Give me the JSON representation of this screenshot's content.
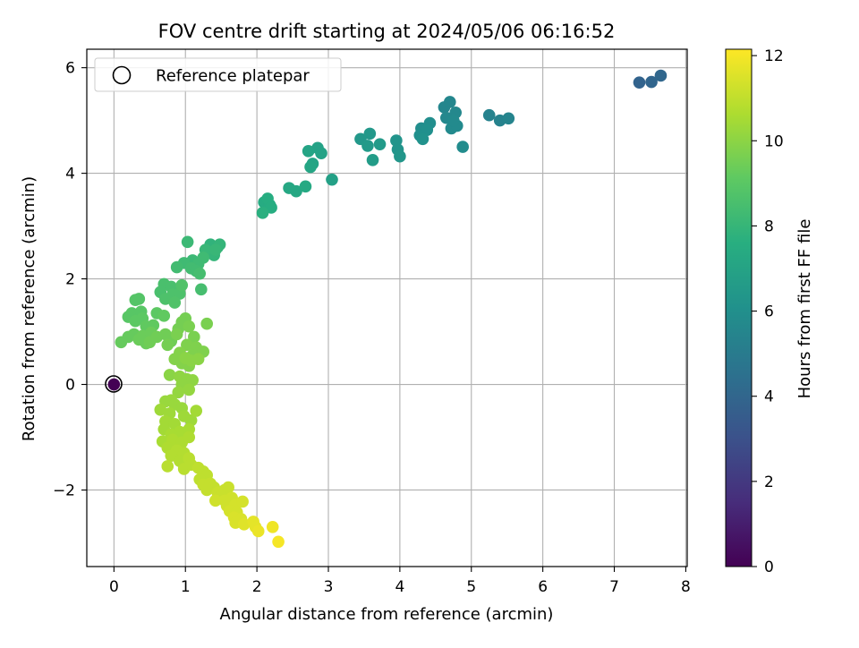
{
  "chart_data": {
    "type": "scatter",
    "title": "FOV centre drift starting at 2024/05/06 06:16:52",
    "xlabel": "Angular distance from reference (arcmin)",
    "ylabel": "Rotation from reference (arcmin)",
    "xlim": [
      -0.38,
      8.02
    ],
    "ylim": [
      -3.45,
      6.35
    ],
    "xticks": [
      0,
      1,
      2,
      3,
      4,
      5,
      6,
      7,
      8
    ],
    "yticks": [
      -2,
      0,
      2,
      4,
      6
    ],
    "xtick_labels": [
      "0",
      "1",
      "2",
      "3",
      "4",
      "5",
      "6",
      "7",
      "8"
    ],
    "ytick_labels": [
      "−2",
      "0",
      "2",
      "4",
      "6"
    ],
    "grid": true,
    "legend": {
      "position": "upper-left",
      "entries": [
        {
          "label": "Reference platepar",
          "marker": "open-circle"
        }
      ]
    },
    "colorbar": {
      "label": "Hours from first FF file",
      "colormap": "viridis",
      "range": [
        0,
        12.15
      ],
      "ticks": [
        0,
        2,
        4,
        6,
        8,
        10,
        12
      ],
      "tick_labels": [
        "0",
        "2",
        "4",
        "6",
        "8",
        "10",
        "12"
      ]
    },
    "reference_point": {
      "x": 0,
      "y": 0,
      "hours": 0
    },
    "points": [
      {
        "x": 7.35,
        "y": 5.72,
        "hours": 3.9
      },
      {
        "x": 7.52,
        "y": 5.73,
        "hours": 4.0
      },
      {
        "x": 7.65,
        "y": 5.85,
        "hours": 4.1
      },
      {
        "x": 5.25,
        "y": 5.1,
        "hours": 5.4
      },
      {
        "x": 5.4,
        "y": 5.0,
        "hours": 5.4
      },
      {
        "x": 5.52,
        "y": 5.04,
        "hours": 5.5
      },
      {
        "x": 4.62,
        "y": 5.25,
        "hours": 5.6
      },
      {
        "x": 4.7,
        "y": 5.35,
        "hours": 5.6
      },
      {
        "x": 4.78,
        "y": 5.15,
        "hours": 5.7
      },
      {
        "x": 4.65,
        "y": 5.05,
        "hours": 5.7
      },
      {
        "x": 4.72,
        "y": 4.85,
        "hours": 5.8
      },
      {
        "x": 4.8,
        "y": 4.9,
        "hours": 5.8
      },
      {
        "x": 4.88,
        "y": 4.5,
        "hours": 5.9
      },
      {
        "x": 4.75,
        "y": 5.0,
        "hours": 5.8
      },
      {
        "x": 4.3,
        "y": 4.85,
        "hours": 6.0
      },
      {
        "x": 4.42,
        "y": 4.95,
        "hours": 6.0
      },
      {
        "x": 4.28,
        "y": 4.72,
        "hours": 6.1
      },
      {
        "x": 4.38,
        "y": 4.82,
        "hours": 6.1
      },
      {
        "x": 4.32,
        "y": 4.65,
        "hours": 6.2
      },
      {
        "x": 3.95,
        "y": 4.62,
        "hours": 6.3
      },
      {
        "x": 3.97,
        "y": 4.45,
        "hours": 6.3
      },
      {
        "x": 4.0,
        "y": 4.32,
        "hours": 6.4
      },
      {
        "x": 3.45,
        "y": 4.65,
        "hours": 6.5
      },
      {
        "x": 3.58,
        "y": 4.75,
        "hours": 6.5
      },
      {
        "x": 3.55,
        "y": 4.52,
        "hours": 6.6
      },
      {
        "x": 3.72,
        "y": 4.55,
        "hours": 6.6
      },
      {
        "x": 3.62,
        "y": 4.25,
        "hours": 6.7
      },
      {
        "x": 3.05,
        "y": 3.88,
        "hours": 6.9
      },
      {
        "x": 2.85,
        "y": 4.48,
        "hours": 7.0
      },
      {
        "x": 2.9,
        "y": 4.38,
        "hours": 7.0
      },
      {
        "x": 2.72,
        "y": 4.42,
        "hours": 7.1
      },
      {
        "x": 2.78,
        "y": 4.18,
        "hours": 7.1
      },
      {
        "x": 2.75,
        "y": 4.12,
        "hours": 7.2
      },
      {
        "x": 2.45,
        "y": 3.72,
        "hours": 7.3
      },
      {
        "x": 2.55,
        "y": 3.66,
        "hours": 7.3
      },
      {
        "x": 2.68,
        "y": 3.75,
        "hours": 7.4
      },
      {
        "x": 2.1,
        "y": 3.45,
        "hours": 7.5
      },
      {
        "x": 2.18,
        "y": 3.4,
        "hours": 7.5
      },
      {
        "x": 2.15,
        "y": 3.52,
        "hours": 7.6
      },
      {
        "x": 2.2,
        "y": 3.35,
        "hours": 7.6
      },
      {
        "x": 2.08,
        "y": 3.25,
        "hours": 7.7
      },
      {
        "x": 1.35,
        "y": 2.65,
        "hours": 7.9
      },
      {
        "x": 1.45,
        "y": 2.6,
        "hours": 7.9
      },
      {
        "x": 1.48,
        "y": 2.65,
        "hours": 8.0
      },
      {
        "x": 1.4,
        "y": 2.45,
        "hours": 8.0
      },
      {
        "x": 1.35,
        "y": 2.5,
        "hours": 8.0
      },
      {
        "x": 1.28,
        "y": 2.55,
        "hours": 8.1
      },
      {
        "x": 1.42,
        "y": 2.55,
        "hours": 8.1
      },
      {
        "x": 1.03,
        "y": 2.7,
        "hours": 8.2
      },
      {
        "x": 1.1,
        "y": 2.35,
        "hours": 8.2
      },
      {
        "x": 1.18,
        "y": 2.28,
        "hours": 8.3
      },
      {
        "x": 1.25,
        "y": 2.4,
        "hours": 8.3
      },
      {
        "x": 0.98,
        "y": 2.3,
        "hours": 8.3
      },
      {
        "x": 1.08,
        "y": 2.2,
        "hours": 8.4
      },
      {
        "x": 1.15,
        "y": 2.15,
        "hours": 8.4
      },
      {
        "x": 0.88,
        "y": 2.22,
        "hours": 8.4
      },
      {
        "x": 1.2,
        "y": 2.1,
        "hours": 8.5
      },
      {
        "x": 1.22,
        "y": 1.8,
        "hours": 8.5
      },
      {
        "x": 0.7,
        "y": 1.9,
        "hours": 8.6
      },
      {
        "x": 0.8,
        "y": 1.85,
        "hours": 8.6
      },
      {
        "x": 0.65,
        "y": 1.75,
        "hours": 8.6
      },
      {
        "x": 0.72,
        "y": 1.62,
        "hours": 8.7
      },
      {
        "x": 0.82,
        "y": 1.7,
        "hours": 8.7
      },
      {
        "x": 0.92,
        "y": 1.72,
        "hours": 8.7
      },
      {
        "x": 0.95,
        "y": 1.88,
        "hours": 8.8
      },
      {
        "x": 0.85,
        "y": 1.55,
        "hours": 8.8
      },
      {
        "x": 0.3,
        "y": 1.6,
        "hours": 8.9
      },
      {
        "x": 0.35,
        "y": 1.62,
        "hours": 8.9
      },
      {
        "x": 0.25,
        "y": 1.35,
        "hours": 9.0
      },
      {
        "x": 0.38,
        "y": 1.38,
        "hours": 9.0
      },
      {
        "x": 0.2,
        "y": 1.28,
        "hours": 9.0
      },
      {
        "x": 0.3,
        "y": 1.2,
        "hours": 9.1
      },
      {
        "x": 0.4,
        "y": 1.25,
        "hours": 9.1
      },
      {
        "x": 0.6,
        "y": 1.35,
        "hours": 9.1
      },
      {
        "x": 0.7,
        "y": 1.3,
        "hours": 9.2
      },
      {
        "x": 0.45,
        "y": 1.1,
        "hours": 9.2
      },
      {
        "x": 0.55,
        "y": 1.12,
        "hours": 9.2
      },
      {
        "x": 0.1,
        "y": 0.8,
        "hours": 9.3
      },
      {
        "x": 0.2,
        "y": 0.9,
        "hours": 9.3
      },
      {
        "x": 0.28,
        "y": 0.95,
        "hours": 9.3
      },
      {
        "x": 0.35,
        "y": 0.85,
        "hours": 9.4
      },
      {
        "x": 0.45,
        "y": 0.78,
        "hours": 9.4
      },
      {
        "x": 0.4,
        "y": 0.92,
        "hours": 9.4
      },
      {
        "x": 0.52,
        "y": 0.98,
        "hours": 9.4
      },
      {
        "x": 0.6,
        "y": 0.9,
        "hours": 9.5
      },
      {
        "x": 0.5,
        "y": 0.8,
        "hours": 9.5
      },
      {
        "x": 0.72,
        "y": 0.95,
        "hours": 9.5
      },
      {
        "x": 0.8,
        "y": 0.82,
        "hours": 9.5
      },
      {
        "x": 0.75,
        "y": 0.75,
        "hours": 9.6
      },
      {
        "x": 0.9,
        "y": 1.05,
        "hours": 9.6
      },
      {
        "x": 1.0,
        "y": 1.25,
        "hours": 9.6
      },
      {
        "x": 0.95,
        "y": 1.18,
        "hours": 9.6
      },
      {
        "x": 1.05,
        "y": 1.1,
        "hours": 9.7
      },
      {
        "x": 0.88,
        "y": 0.95,
        "hours": 9.7
      },
      {
        "x": 1.12,
        "y": 0.9,
        "hours": 9.7
      },
      {
        "x": 1.3,
        "y": 1.15,
        "hours": 9.7
      },
      {
        "x": 1.02,
        "y": 0.75,
        "hours": 9.8
      },
      {
        "x": 1.15,
        "y": 0.7,
        "hours": 9.8
      },
      {
        "x": 1.25,
        "y": 0.62,
        "hours": 9.8
      },
      {
        "x": 1.1,
        "y": 0.55,
        "hours": 9.8
      },
      {
        "x": 0.92,
        "y": 0.6,
        "hours": 9.9
      },
      {
        "x": 0.85,
        "y": 0.48,
        "hours": 9.9
      },
      {
        "x": 0.95,
        "y": 0.4,
        "hours": 9.9
      },
      {
        "x": 1.05,
        "y": 0.35,
        "hours": 9.9
      },
      {
        "x": 1.0,
        "y": 0.5,
        "hours": 10.0
      },
      {
        "x": 1.08,
        "y": 0.45,
        "hours": 10.0
      },
      {
        "x": 1.18,
        "y": 0.48,
        "hours": 10.0
      },
      {
        "x": 0.78,
        "y": 0.18,
        "hours": 10.0
      },
      {
        "x": 0.92,
        "y": 0.15,
        "hours": 10.1
      },
      {
        "x": 1.02,
        "y": 0.1,
        "hours": 10.1
      },
      {
        "x": 0.95,
        "y": 0.0,
        "hours": 10.1
      },
      {
        "x": 1.1,
        "y": 0.08,
        "hours": 10.1
      },
      {
        "x": 1.05,
        "y": -0.1,
        "hours": 10.2
      },
      {
        "x": 0.9,
        "y": -0.15,
        "hours": 10.2
      },
      {
        "x": 0.8,
        "y": -0.3,
        "hours": 10.3
      },
      {
        "x": 0.72,
        "y": -0.32,
        "hours": 10.3
      },
      {
        "x": 0.85,
        "y": -0.38,
        "hours": 10.3
      },
      {
        "x": 0.95,
        "y": -0.45,
        "hours": 10.3
      },
      {
        "x": 0.65,
        "y": -0.48,
        "hours": 10.4
      },
      {
        "x": 0.78,
        "y": -0.55,
        "hours": 10.4
      },
      {
        "x": 0.98,
        "y": -0.6,
        "hours": 10.4
      },
      {
        "x": 1.08,
        "y": -0.68,
        "hours": 10.4
      },
      {
        "x": 1.15,
        "y": -0.5,
        "hours": 10.5
      },
      {
        "x": 0.72,
        "y": -0.7,
        "hours": 10.5
      },
      {
        "x": 0.85,
        "y": -0.75,
        "hours": 10.5
      },
      {
        "x": 0.7,
        "y": -0.85,
        "hours": 10.5
      },
      {
        "x": 0.92,
        "y": -0.9,
        "hours": 10.6
      },
      {
        "x": 1.05,
        "y": -0.85,
        "hours": 10.6
      },
      {
        "x": 0.8,
        "y": -0.95,
        "hours": 10.6
      },
      {
        "x": 0.68,
        "y": -1.08,
        "hours": 10.6
      },
      {
        "x": 0.82,
        "y": -1.05,
        "hours": 10.7
      },
      {
        "x": 0.95,
        "y": -1.1,
        "hours": 10.7
      },
      {
        "x": 1.05,
        "y": -1.0,
        "hours": 10.7
      },
      {
        "x": 0.75,
        "y": -1.2,
        "hours": 10.7
      },
      {
        "x": 0.88,
        "y": -1.25,
        "hours": 10.8
      },
      {
        "x": 0.98,
        "y": -1.3,
        "hours": 10.8
      },
      {
        "x": 0.8,
        "y": -1.35,
        "hours": 10.8
      },
      {
        "x": 0.92,
        "y": -1.45,
        "hours": 10.8
      },
      {
        "x": 1.05,
        "y": -1.4,
        "hours": 10.9
      },
      {
        "x": 0.75,
        "y": -1.55,
        "hours": 10.9
      },
      {
        "x": 0.98,
        "y": -1.6,
        "hours": 10.9
      },
      {
        "x": 1.08,
        "y": -1.52,
        "hours": 10.9
      },
      {
        "x": 1.18,
        "y": -1.58,
        "hours": 11.0
      },
      {
        "x": 1.25,
        "y": -1.65,
        "hours": 11.0
      },
      {
        "x": 1.3,
        "y": -1.72,
        "hours": 11.0
      },
      {
        "x": 1.2,
        "y": -1.8,
        "hours": 11.0
      },
      {
        "x": 1.25,
        "y": -1.9,
        "hours": 11.1
      },
      {
        "x": 1.35,
        "y": -1.88,
        "hours": 11.1
      },
      {
        "x": 1.4,
        "y": -1.95,
        "hours": 11.1
      },
      {
        "x": 1.3,
        "y": -2.0,
        "hours": 11.1
      },
      {
        "x": 1.45,
        "y": -2.05,
        "hours": 11.2
      },
      {
        "x": 1.55,
        "y": -2.0,
        "hours": 11.2
      },
      {
        "x": 1.6,
        "y": -1.95,
        "hours": 11.2
      },
      {
        "x": 1.5,
        "y": -2.12,
        "hours": 11.2
      },
      {
        "x": 1.42,
        "y": -2.2,
        "hours": 11.3
      },
      {
        "x": 1.55,
        "y": -2.2,
        "hours": 11.3
      },
      {
        "x": 1.65,
        "y": -2.15,
        "hours": 11.3
      },
      {
        "x": 1.58,
        "y": -2.3,
        "hours": 11.3
      },
      {
        "x": 1.7,
        "y": -2.28,
        "hours": 11.4
      },
      {
        "x": 1.8,
        "y": -2.22,
        "hours": 11.4
      },
      {
        "x": 1.62,
        "y": -2.4,
        "hours": 11.4
      },
      {
        "x": 1.72,
        "y": -2.42,
        "hours": 11.4
      },
      {
        "x": 1.68,
        "y": -2.52,
        "hours": 11.5
      },
      {
        "x": 1.78,
        "y": -2.55,
        "hours": 11.5
      },
      {
        "x": 1.7,
        "y": -2.62,
        "hours": 11.5
      },
      {
        "x": 1.82,
        "y": -2.65,
        "hours": 11.6
      },
      {
        "x": 1.95,
        "y": -2.6,
        "hours": 11.7
      },
      {
        "x": 1.98,
        "y": -2.7,
        "hours": 11.7
      },
      {
        "x": 2.02,
        "y": -2.78,
        "hours": 11.8
      },
      {
        "x": 2.22,
        "y": -2.7,
        "hours": 11.9
      },
      {
        "x": 2.3,
        "y": -2.98,
        "hours": 12.0
      }
    ]
  }
}
